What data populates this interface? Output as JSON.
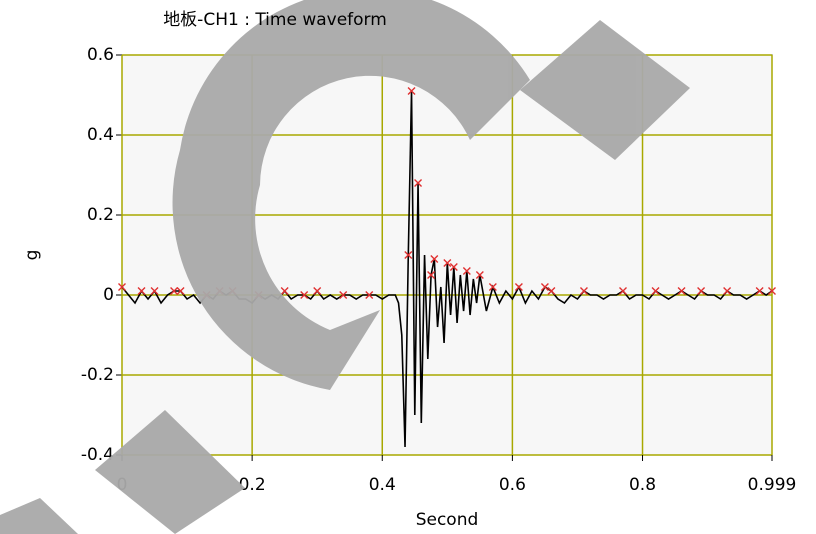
{
  "chart_data": {
    "type": "line",
    "title": "地板-CH1 : Time waveform",
    "x_label": "Second",
    "y_label": "g",
    "xlim": [
      0,
      0.999
    ],
    "ylim": [
      -0.4,
      0.6
    ],
    "xticks": [
      0,
      0.2,
      0.4,
      0.6,
      0.8,
      0.999
    ],
    "yticks": [
      0.6,
      0.4,
      0.2,
      0,
      -0.2,
      -0.4
    ],
    "grid": true,
    "grid_color": "#a8a800",
    "background": "#f7f7f7",
    "series": [
      {
        "color": "#000000",
        "x": [
          0,
          0.01,
          0.02,
          0.03,
          0.04,
          0.05,
          0.06,
          0.07,
          0.08,
          0.09,
          0.1,
          0.11,
          0.12,
          0.13,
          0.14,
          0.15,
          0.16,
          0.17,
          0.18,
          0.19,
          0.2,
          0.21,
          0.22,
          0.23,
          0.24,
          0.25,
          0.26,
          0.27,
          0.28,
          0.29,
          0.3,
          0.31,
          0.32,
          0.33,
          0.34,
          0.35,
          0.36,
          0.37,
          0.38,
          0.39,
          0.4,
          0.41,
          0.42,
          0.425,
          0.43,
          0.435,
          0.44,
          0.445,
          0.45,
          0.455,
          0.46,
          0.465,
          0.47,
          0.475,
          0.48,
          0.485,
          0.49,
          0.495,
          0.5,
          0.505,
          0.51,
          0.515,
          0.52,
          0.525,
          0.53,
          0.535,
          0.54,
          0.545,
          0.55,
          0.56,
          0.57,
          0.58,
          0.59,
          0.6,
          0.61,
          0.62,
          0.63,
          0.64,
          0.65,
          0.66,
          0.67,
          0.68,
          0.69,
          0.7,
          0.71,
          0.72,
          0.73,
          0.74,
          0.75,
          0.76,
          0.77,
          0.78,
          0.79,
          0.8,
          0.81,
          0.82,
          0.83,
          0.84,
          0.85,
          0.86,
          0.87,
          0.88,
          0.89,
          0.9,
          0.91,
          0.92,
          0.93,
          0.94,
          0.95,
          0.96,
          0.97,
          0.98,
          0.99,
          0.999
        ],
        "values": [
          0.02,
          0,
          -0.02,
          0.01,
          -0.01,
          0.01,
          -0.02,
          0,
          0.01,
          0.01,
          -0.01,
          0,
          -0.02,
          0,
          -0.01,
          0.01,
          0,
          0.01,
          -0.01,
          -0.01,
          -0.02,
          0,
          -0.01,
          0,
          -0.01,
          0.01,
          -0.01,
          0,
          0,
          -0.01,
          0.01,
          -0.01,
          0,
          -0.01,
          0,
          0,
          -0.01,
          0,
          0,
          0,
          -0.01,
          0,
          0,
          -0.02,
          -0.1,
          -0.38,
          0.1,
          0.51,
          -0.3,
          0.28,
          -0.32,
          0.1,
          -0.16,
          0.05,
          0.09,
          -0.08,
          0.02,
          -0.12,
          0.08,
          -0.05,
          0.07,
          -0.07,
          0.05,
          -0.04,
          0.06,
          -0.05,
          0.04,
          -0.02,
          0.05,
          -0.04,
          0.02,
          -0.02,
          0.01,
          -0.01,
          0.02,
          -0.02,
          0.01,
          -0.01,
          0.02,
          0.01,
          -0.01,
          -0.02,
          0,
          -0.01,
          0.01,
          0,
          0,
          -0.01,
          0,
          0,
          0.01,
          -0.01,
          0,
          0,
          -0.01,
          0.01,
          0,
          -0.01,
          0,
          0.01,
          0,
          -0.01,
          0.01,
          0,
          0,
          -0.01,
          0.01,
          0,
          0,
          -0.01,
          0,
          0.01,
          0,
          0.01
        ]
      },
      {
        "color": "#e03030",
        "marker": "x",
        "x": [
          0,
          0.03,
          0.05,
          0.08,
          0.09,
          0.13,
          0.15,
          0.17,
          0.21,
          0.25,
          0.28,
          0.3,
          0.34,
          0.38,
          0.44,
          0.445,
          0.455,
          0.475,
          0.48,
          0.5,
          0.51,
          0.53,
          0.55,
          0.57,
          0.61,
          0.65,
          0.66,
          0.71,
          0.77,
          0.82,
          0.86,
          0.89,
          0.93,
          0.98,
          0.999
        ],
        "values": [
          0.02,
          0.01,
          0.01,
          0.01,
          0.01,
          0,
          0.01,
          0.01,
          0,
          0.01,
          0,
          0.01,
          0,
          0,
          0.1,
          0.51,
          0.28,
          0.05,
          0.09,
          0.08,
          0.07,
          0.06,
          0.05,
          0.02,
          0.02,
          0.02,
          0.01,
          0.01,
          0.01,
          0.01,
          0.01,
          0.01,
          0.01,
          0.01,
          0.01
        ]
      }
    ]
  }
}
